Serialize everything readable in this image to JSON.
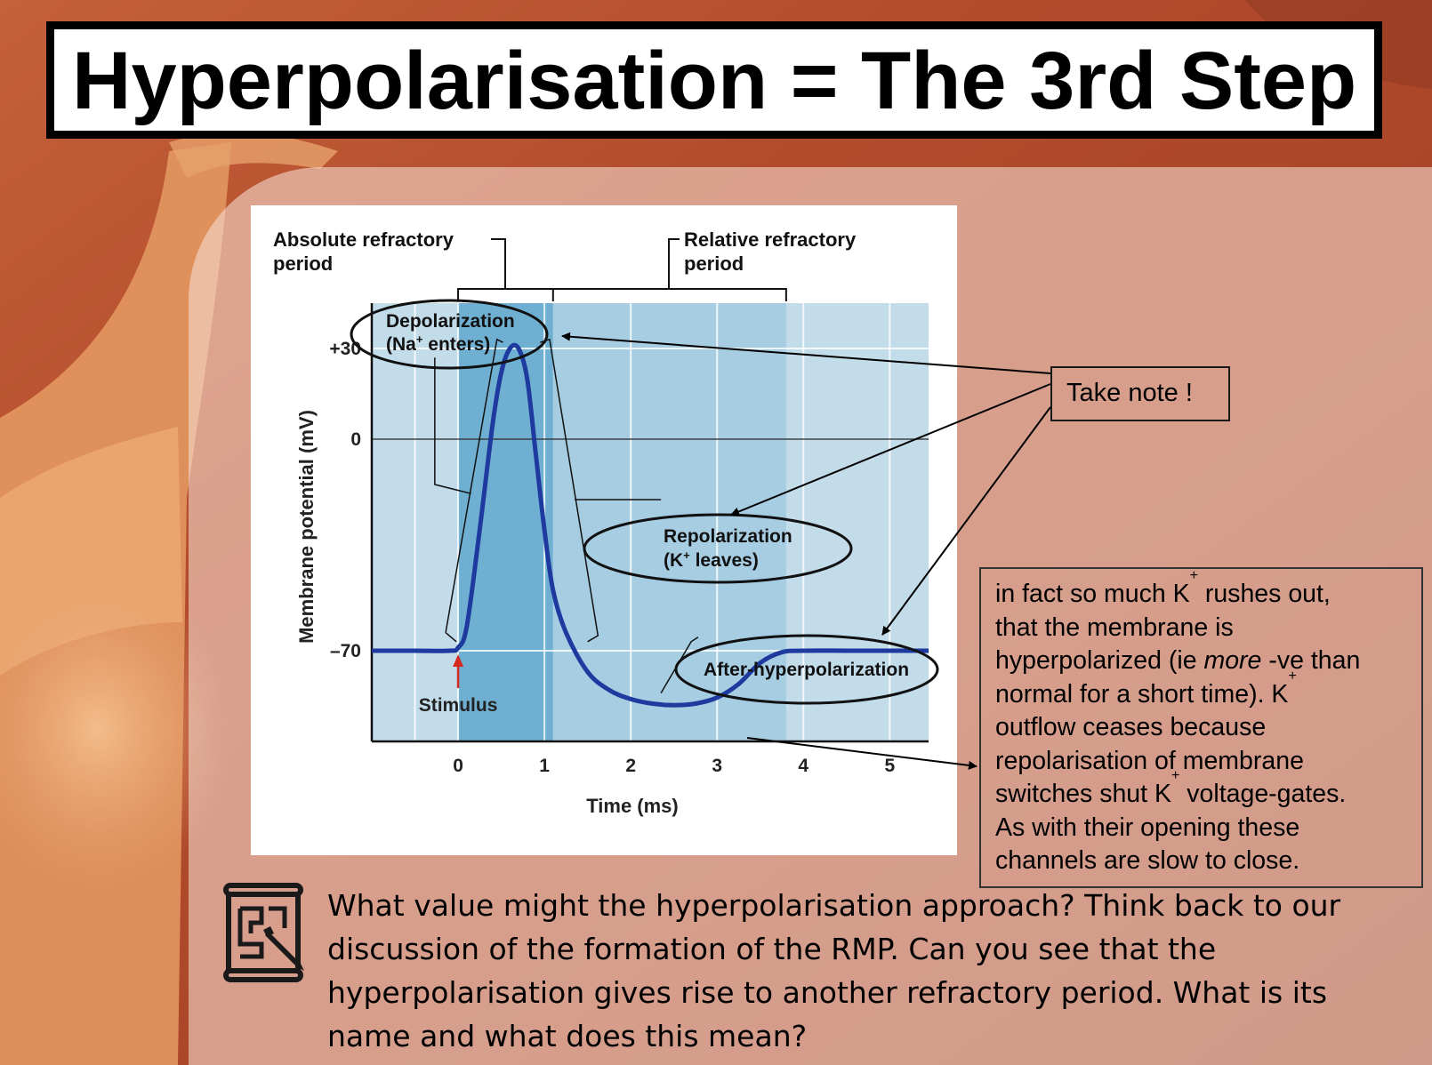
{
  "slide": {
    "title": "Hyperpolarisation = The 3rd Step",
    "note_label": "Take note !",
    "info_lines": [
      [
        "in fact so much K",
        "+",
        " rushes out,"
      ],
      [
        "that the membrane is"
      ],
      [
        "hyperpolarized  (ie ",
        "more",
        " -ve than"
      ],
      [
        "normal for a short time). K",
        "+"
      ],
      [
        "outflow ceases because"
      ],
      [
        "repolarisation of  membrane"
      ],
      [
        "switches shut K",
        "+",
        " voltage-gates."
      ],
      [
        "As with their opening these"
      ],
      [
        "channels are slow to close."
      ]
    ],
    "question_lines": [
      "What value might the hyperpolarisation approach? Think back to our",
      "discussion of the formation of the RMP. Can you see that the",
      "hyperpolarisation gives rise to another refractory period. What is its",
      "name and what does this mean?"
    ],
    "icon": "blueprint-pencil-icon"
  },
  "chart_data": {
    "type": "line",
    "title": "",
    "xlabel": "Time (ms)",
    "ylabel": "Membrane potential (mV)",
    "xlim": [
      -1,
      5.45
    ],
    "ylim": [
      -100,
      45
    ],
    "x_ticks": [
      0,
      1,
      2,
      3,
      4,
      5
    ],
    "y_ticks": [
      {
        "value": 30,
        "label": "+30"
      },
      {
        "value": 0,
        "label": "0"
      },
      {
        "value": -70,
        "label": "–70"
      }
    ],
    "grid": true,
    "series": [
      {
        "x": [
          -1.0,
          -0.5,
          -0.1,
          0.0,
          0.1,
          0.25,
          0.4,
          0.5,
          0.6,
          0.7,
          0.8,
          0.9,
          1.0,
          1.1,
          1.25,
          1.5,
          1.75,
          2.0,
          2.25,
          2.5,
          2.75,
          3.0,
          3.25,
          3.5,
          3.75,
          4.0,
          4.5,
          5.0,
          5.45
        ],
        "y": [
          -70,
          -70,
          -70,
          -69,
          -62,
          -30,
          5,
          22,
          30,
          30,
          20,
          -5,
          -30,
          -50,
          -64,
          -77,
          -83,
          -86,
          -87.5,
          -88,
          -87.5,
          -85.5,
          -81,
          -74,
          -70.5,
          -70,
          -70,
          -70,
          -70
        ],
        "color": "#1f3a9e"
      }
    ],
    "regions": [
      {
        "name": "Absolute refractory period",
        "x": [
          0,
          1.1
        ]
      },
      {
        "name": "Relative refractory period",
        "x": [
          1.1,
          3.8
        ]
      }
    ],
    "annotations": [
      {
        "lines": [
          "Depolarization",
          "(Na",
          "+",
          " enters)"
        ]
      },
      {
        "lines": [
          "Repolarization",
          "(K",
          "+",
          " leaves)"
        ]
      },
      {
        "lines": [
          "After-hyperpolarization"
        ]
      },
      {
        "lines": [
          "Stimulus"
        ]
      }
    ],
    "colors": {
      "trace": "#1f3a9e",
      "grid_bg": "#c3dcea",
      "absolute": "#6fb0d2",
      "relative": "#a7cde3",
      "stimulus": "#d42a1f"
    }
  }
}
